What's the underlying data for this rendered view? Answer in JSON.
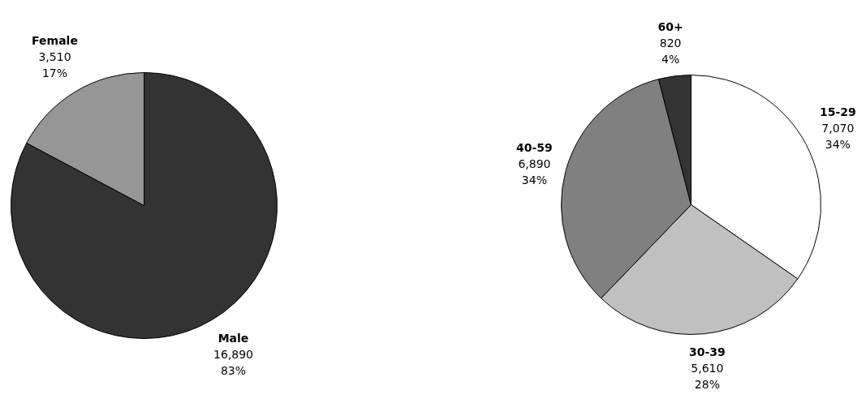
{
  "chart_data": [
    {
      "type": "pie",
      "categories": [
        "Male",
        "Female"
      ],
      "values": [
        16890,
        3510
      ],
      "colors": [
        "#333333",
        "#969696"
      ],
      "value_labels": [
        "16,890\n83%",
        "3,510\n17%"
      ]
    },
    {
      "type": "pie",
      "categories": [
        "15-29",
        "30-39",
        "40-59",
        "60+"
      ],
      "values": [
        7070,
        5610,
        6890,
        820
      ],
      "colors": [
        "#ffffff",
        "#c0c0c0",
        "#808080",
        "#333333"
      ],
      "value_labels": [
        "7,070\n34%",
        "5,610\n28%",
        "6,890\n34%",
        "820\n4%"
      ]
    }
  ]
}
